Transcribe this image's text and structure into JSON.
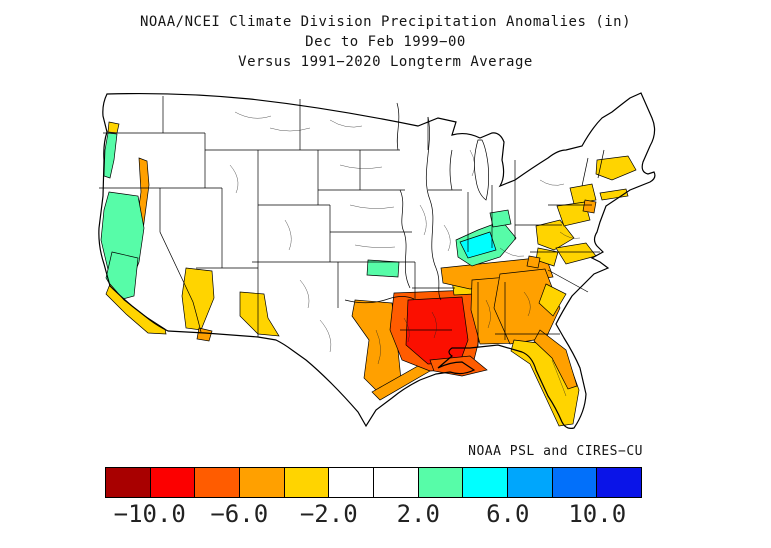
{
  "title": {
    "line1": "NOAA/NCEI Climate Division Precipitation Anomalies (in)",
    "line2": "Dec to Feb 1999−00",
    "line3": "Versus 1991−2020 Longterm Average"
  },
  "credit": "NOAA PSL and CIRES−CU",
  "colorbar": {
    "unit": "in",
    "tick_labels": [
      "−10.0",
      "−6.0",
      "−2.0",
      "2.0",
      "6.0",
      "10.0"
    ],
    "cells": [
      {
        "range": "below −10",
        "color": "#a80000"
      },
      {
        "range": "−10 to −8",
        "color": "#fc0000"
      },
      {
        "range": "−8 to −6",
        "color": "#ff5c00"
      },
      {
        "range": "−6 to −4",
        "color": "#ffa000"
      },
      {
        "range": "−4 to −2",
        "color": "#ffd400"
      },
      {
        "range": "−2 to 0",
        "color": "#ffffff"
      },
      {
        "range": "0 to 2",
        "color": "#ffffff"
      },
      {
        "range": "2 to 4",
        "color": "#57fca8"
      },
      {
        "range": "4 to 6",
        "color": "#00ffff"
      },
      {
        "range": "6 to 8",
        "color": "#00a6fc"
      },
      {
        "range": "8 to 10",
        "color": "#0270fa"
      },
      {
        "range": "above 10",
        "color": "#0a14e8"
      }
    ]
  },
  "map": {
    "description": "Continental US climate divisions; white = near normal (−2 to +2 in)",
    "line_color": "#000000",
    "regions": [
      {
        "name": "oregon-coast",
        "anomaly": "+2 to +4",
        "color": "#57fca8"
      },
      {
        "name": "wa-or-border",
        "anomaly": "−4 to −2",
        "color": "#ffd400"
      },
      {
        "name": "willamette-valley",
        "anomaly": "−6 to −4",
        "color": "#ffa000"
      },
      {
        "name": "north-california",
        "anomaly": "+2 to +4",
        "color": "#57fca8"
      },
      {
        "name": "central-california",
        "anomaly": "+2 to +4",
        "color": "#57fca8"
      },
      {
        "name": "south-california-coast",
        "anomaly": "−4 to −2",
        "color": "#ffd400"
      },
      {
        "name": "arizona-west",
        "anomaly": "−4 to −2",
        "color": "#ffd400"
      },
      {
        "name": "arizona-south",
        "anomaly": "−6 to −4",
        "color": "#ffa000"
      },
      {
        "name": "new-mexico-south",
        "anomaly": "−4 to −2",
        "color": "#ffd400"
      },
      {
        "name": "kansas-east",
        "anomaly": "+2 to +4",
        "color": "#57fca8"
      },
      {
        "name": "east-texas",
        "anomaly": "−6 to −4",
        "color": "#ffa000"
      },
      {
        "name": "texas-coast",
        "anomaly": "−6 to −4",
        "color": "#ffa000"
      },
      {
        "name": "lower-mississippi-ring",
        "anomaly": "−8 to −6",
        "color": "#ff5c00"
      },
      {
        "name": "louisiana-mississippi-core",
        "anomaly": "−10 to −8",
        "color": "#fb0f00"
      },
      {
        "name": "louisiana-coast",
        "anomaly": "−8 to −6",
        "color": "#ff5c00"
      },
      {
        "name": "mississippi-alabama",
        "anomaly": "−6 to −4",
        "color": "#ffa000"
      },
      {
        "name": "tennessee-band",
        "anomaly": "−6 to −4",
        "color": "#ffa000"
      },
      {
        "name": "west-tennessee",
        "anomaly": "−4 to −2",
        "color": "#ffd400"
      },
      {
        "name": "kentucky-green",
        "anomaly": "+2 to +4",
        "color": "#57fca8"
      },
      {
        "name": "indiana-south",
        "anomaly": "+2 to +4",
        "color": "#57fca8"
      },
      {
        "name": "kentucky-cyan",
        "anomaly": "+4 to +6",
        "color": "#00ffff"
      },
      {
        "name": "georgia",
        "anomaly": "−6 to −4",
        "color": "#ffa000"
      },
      {
        "name": "south-carolina-coast",
        "anomaly": "−4 to −2",
        "color": "#ffd400"
      },
      {
        "name": "virginia-west",
        "anomaly": "−4 to −2",
        "color": "#ffd400"
      },
      {
        "name": "north-carolina-patch",
        "anomaly": "−4 to −2",
        "color": "#ffd400"
      },
      {
        "name": "massachusetts-connecticut",
        "anomaly": "−4 to −2",
        "color": "#ffd400"
      },
      {
        "name": "new-york-patch",
        "anomaly": "−4 to −2",
        "color": "#ffd400"
      },
      {
        "name": "pennsylvania-newjersey",
        "anomaly": "−4 to −2",
        "color": "#ffd400"
      },
      {
        "name": "new-jersey-coast",
        "anomaly": "−6 to −4",
        "color": "#ffa000"
      },
      {
        "name": "maryland-patch",
        "anomaly": "−4 to −2",
        "color": "#ffd400"
      },
      {
        "name": "pennsylvania-south-dot",
        "anomaly": "−6 to −4",
        "color": "#ffa000"
      },
      {
        "name": "florida-peninsula",
        "anomaly": "−4 to −2",
        "color": "#ffd400"
      },
      {
        "name": "florida-east-coast",
        "anomaly": "−6 to −4",
        "color": "#ffa000"
      },
      {
        "name": "long-island",
        "anomaly": "−4 to −2",
        "color": "#ffd400"
      }
    ]
  }
}
